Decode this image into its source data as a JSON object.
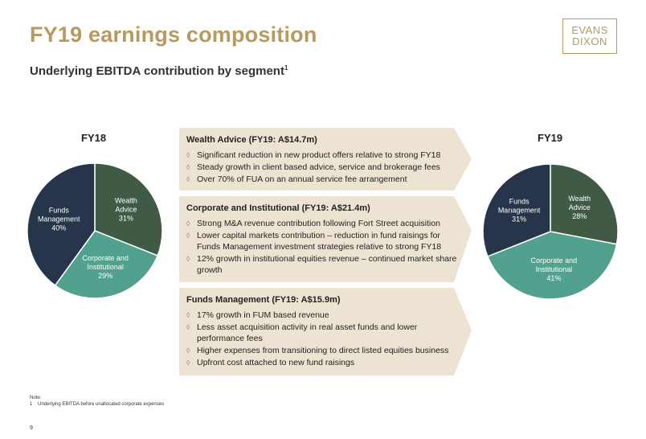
{
  "title": "FY19 earnings composition",
  "subtitle": "Underlying EBITDA contribution by segment",
  "subtitle_sup": "1",
  "logo": {
    "line1": "EVANS",
    "line2": "DIXON"
  },
  "colors": {
    "gold": "#b8995e",
    "wealth": "#3f5a45",
    "funds": "#26354a",
    "corporate": "#52a08e",
    "panel": "#ece3d3"
  },
  "chart_data": [
    {
      "type": "pie",
      "title": "FY18",
      "slices": [
        {
          "label": [
            "Wealth",
            "Advice"
          ],
          "value": 31,
          "text": "31%"
        },
        {
          "label": [
            "Corporate and",
            "Institutional"
          ],
          "value": 29,
          "text": "29%"
        },
        {
          "label": [
            "Funds",
            "Management"
          ],
          "value": 40,
          "text": "40%"
        }
      ]
    },
    {
      "type": "pie",
      "title": "FY19",
      "slices": [
        {
          "label": [
            "Wealth",
            "Advice"
          ],
          "value": 28,
          "text": "28%"
        },
        {
          "label": [
            "Corporate and",
            "Institutional"
          ],
          "value": 41,
          "text": "41%"
        },
        {
          "label": [
            "Funds",
            "Management"
          ],
          "value": 31,
          "text": "31%"
        }
      ]
    }
  ],
  "segments": [
    {
      "heading": "Wealth Advice (FY19: A$14.7m)",
      "bullets": [
        "Significant reduction in new product offers relative to strong FY18",
        "Steady growth in client based advice, service and brokerage fees",
        "Over 70% of FUA on an annual service fee arrangement"
      ]
    },
    {
      "heading": "Corporate and Institutional (FY19: A$21.4m)",
      "bullets": [
        "Strong M&A revenue contribution following Fort Street acquisition",
        "Lower capital markets contribution – reduction in fund raisings for Funds Management investment strategies relative to strong FY18",
        "12% growth in institutional equities revenue – continued market share growth"
      ]
    },
    {
      "heading": "Funds Management (FY19: A$15.9m)",
      "bullets": [
        "17% growth in FUM based revenue",
        "Less asset acquisition activity in real asset funds and lower performance fees",
        "Higher expenses from transitioning to direct listed equities business",
        "Upfront cost attached to new fund raisings"
      ]
    }
  ],
  "bullet_glyph": "◊",
  "note": {
    "label": "Note:",
    "num": "1",
    "text": "Underlying EBITDA before unallocated corporate expenses"
  },
  "page_number": "9"
}
